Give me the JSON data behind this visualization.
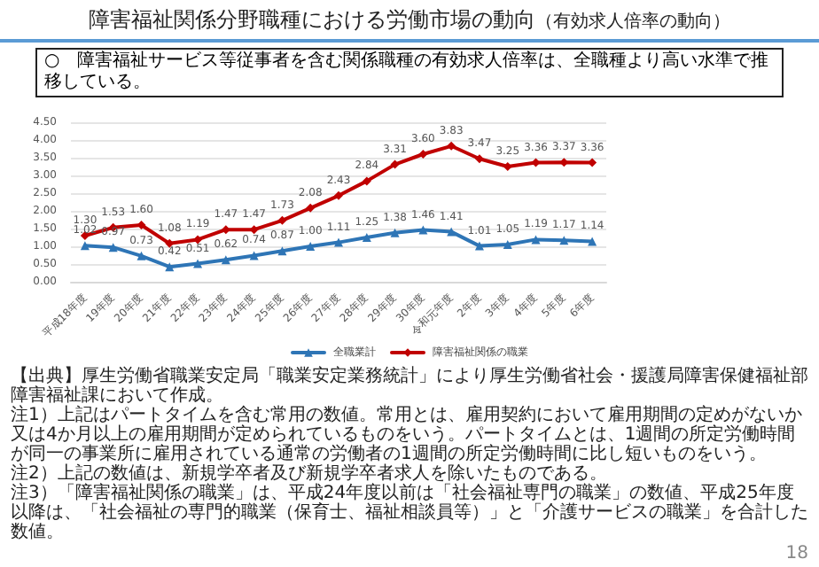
{
  "chart_data": {
    "type": "line",
    "title": "障害福祉関係分野職種における労働市場の動向",
    "subtitle": "（有効求人倍率の動向）",
    "annotations": [
      "○　障害福祉サービス等従事者を含む関係職種の有効求人倍率は、全職種より高い水準で推移している。",
      "【出典】厚生労働省職業安定局「職業安定業務統計」により厚生労働省社会・援護局障害保健福祉部障害福祉課において作成。",
      "注1）上記はパートタイムを含む常用の数値。常用とは、雇用契約において雇用期間の定めがないか又は4か月以上の雇用期間が定められているものをいう。パートタイムとは、1週間の所定労働時間が同一の事業所に雇用されている通常の労働者の1週間の所定労働時間に比し短いものをいう。",
      "注2）上記の数値は、新規学卒者及び新規学卒者求人を除いたものである。",
      "注3）「障害福祉関係の職業」は、平成24年度以前は「社会福祉専門の職業」の数値、平成25年度以降は、「社会福祉の専門的職業（保育士、福祉相談員等）」と「介護サービスの職業」を合計した数値。",
      "18"
    ],
    "categories": [
      "平成18年度",
      "19年度",
      "20年度",
      "21年度",
      "22年度",
      "23年度",
      "24年度",
      "25年度",
      "26年度",
      "27年度",
      "28年度",
      "29年度",
      "30年度",
      "令和元年度",
      "2年度",
      "3年度",
      "4年度",
      "5年度",
      "6年度"
    ],
    "series": [
      {
        "name": "全職業計",
        "color": "#2e75b6",
        "marker": "triangle",
        "values": [
          1.02,
          0.97,
          0.73,
          0.42,
          0.51,
          0.62,
          0.74,
          0.87,
          1.0,
          1.11,
          1.25,
          1.38,
          1.46,
          1.41,
          1.01,
          1.05,
          1.19,
          1.17,
          1.14
        ],
        "value_labels": [
          "1.02",
          "0.97",
          "0.73",
          "0.42",
          "0.51",
          "0.62",
          "0.74",
          "0.87",
          "1.00",
          "1.11",
          "1.25",
          "1.38",
          "1.46",
          "1.41",
          "1.01",
          "1.05",
          "1.19",
          "1.17",
          "1.14"
        ]
      },
      {
        "name": "障害福祉関係の職業",
        "color": "#c00000",
        "marker": "diamond",
        "values": [
          1.3,
          1.53,
          1.6,
          1.08,
          1.19,
          1.47,
          1.47,
          1.73,
          2.08,
          2.43,
          2.84,
          3.31,
          3.6,
          3.83,
          3.47,
          3.25,
          3.36,
          3.37,
          3.36
        ],
        "value_labels": [
          "1.30",
          "1.53",
          "1.60",
          "1.08",
          "1.19",
          "1.47",
          "1.47",
          "1.73",
          "2.08",
          "2.43",
          "2.84",
          "3.31",
          "3.60",
          "3.83",
          "3.47",
          "3.25",
          "3.36",
          "3.37",
          "3.36"
        ]
      }
    ],
    "ylim": [
      0,
      4.5
    ],
    "yticks": [
      {
        "value": 0,
        "label": "0.00"
      },
      {
        "value": 0.5,
        "label": "0.50"
      },
      {
        "value": 1,
        "label": "1.00"
      },
      {
        "value": 1.5,
        "label": "1.50"
      },
      {
        "value": 2,
        "label": "2.00"
      },
      {
        "value": 2.5,
        "label": "2.50"
      },
      {
        "value": 3,
        "label": "3.00"
      },
      {
        "value": 3.5,
        "label": "3.50"
      },
      {
        "value": 4,
        "label": "4.00"
      },
      {
        "value": 4.5,
        "label": "4.50"
      }
    ],
    "grid": "y",
    "legend": "bottom",
    "line_style": "solid"
  }
}
